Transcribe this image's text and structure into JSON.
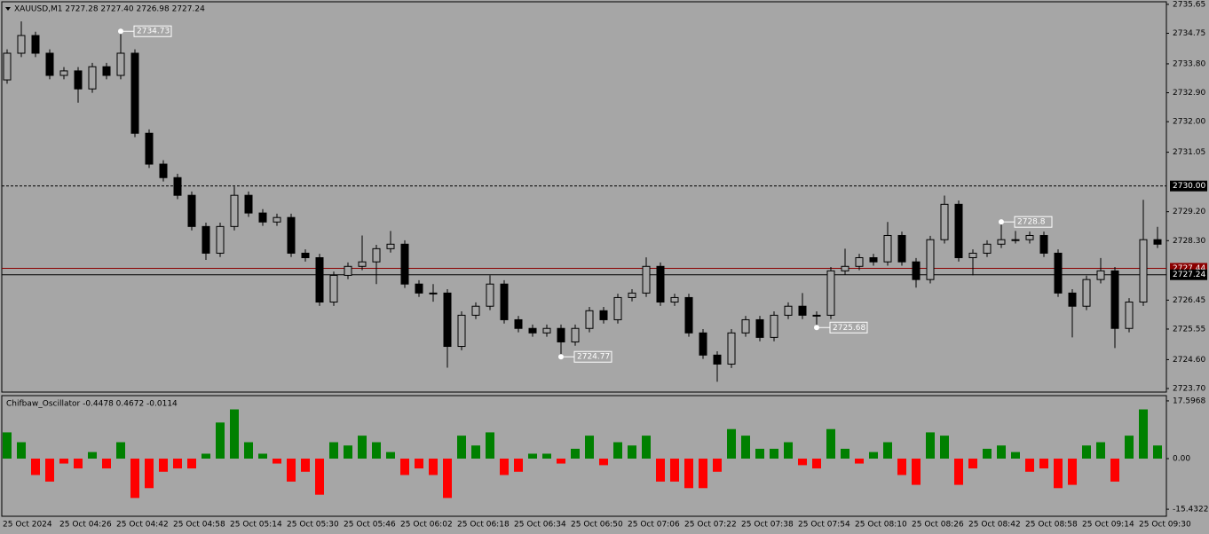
{
  "chart_data": [
    {
      "type": "candlestick",
      "title": "XAUUSD,M1  2727.28 2727.40 2726.98 2727.24",
      "color": "#000000",
      "categories": [
        "25 Oct 2024",
        null,
        null,
        null,
        "25 Oct 04:26",
        null,
        null,
        null,
        "25 Oct 04:42",
        null,
        null,
        null,
        "25 Oct 04:58",
        null,
        null,
        null,
        "25 Oct 05:14",
        null,
        null,
        null,
        "25 Oct 05:30",
        null,
        null,
        null,
        "25 Oct 05:46",
        null,
        null,
        null,
        "25 Oct 06:02",
        null,
        null,
        null,
        "25 Oct 06:18",
        null,
        null,
        null,
        "25 Oct 06:34",
        null,
        null,
        null,
        "25 Oct 06:50",
        null,
        null,
        null,
        "25 Oct 07:06",
        null,
        null,
        null,
        "25 Oct 07:22",
        null,
        null,
        null,
        "25 Oct 07:38",
        null,
        null,
        null,
        "25 Oct 07:54",
        null,
        null,
        null,
        "25 Oct 08:10",
        null,
        null,
        null,
        "25 Oct 08:26",
        null,
        null,
        null,
        "25 Oct 08:42",
        null,
        null,
        null,
        "25 Oct 08:58",
        null,
        null,
        null,
        "25 Oct 09:14",
        null,
        null,
        null,
        "25 Oct 09:30",
        null
      ],
      "open": [
        2733.3,
        2734.13,
        2734.68,
        2734.13,
        2733.44,
        2733.58,
        2733.02,
        2733.71,
        2733.44,
        2734.13,
        2731.64,
        2730.68,
        2730.26,
        2729.71,
        2728.74,
        2727.91,
        2728.74,
        2729.71,
        2729.16,
        2728.88,
        2729.02,
        2727.91,
        2727.77,
        2726.39,
        2727.22,
        2727.5,
        2727.64,
        2728.05,
        2728.19,
        2726.95,
        2726.67,
        2726.67,
        2725.01,
        2725.98,
        2726.26,
        2726.95,
        2725.84,
        2725.57,
        2725.43,
        2725.57,
        2725.15,
        2725.57,
        2726.12,
        2725.84,
        2726.53,
        2726.67,
        2727.5,
        2726.39,
        2726.53,
        2725.43,
        2724.74,
        2724.46,
        2725.43,
        2725.84,
        2725.29,
        2725.98,
        2726.26,
        2725.98,
        2725.98,
        2727.36,
        2727.5,
        2727.77,
        2727.64,
        2728.46,
        2727.64,
        2727.09,
        2728.33,
        2729.43,
        2727.77,
        2727.91,
        2728.19,
        2728.33,
        2728.33,
        2728.46,
        2727.91,
        2726.67,
        2726.26,
        2727.09,
        2727.36,
        2725.57,
        2726.39,
        2728.33
      ],
      "high": [
        2734.25,
        2735.12,
        2734.8,
        2734.25,
        2733.7,
        2733.7,
        2733.83,
        2733.83,
        2734.73,
        2734.25,
        2731.76,
        2730.8,
        2730.38,
        2729.83,
        2728.86,
        2728.86,
        2729.98,
        2729.83,
        2729.28,
        2729.14,
        2729.14,
        2728.03,
        2727.89,
        2727.34,
        2727.62,
        2728.46,
        2728.17,
        2728.6,
        2728.31,
        2727.07,
        2726.95,
        2726.79,
        2726.1,
        2726.38,
        2727.22,
        2727.07,
        2725.96,
        2725.69,
        2725.69,
        2725.69,
        2725.69,
        2726.24,
        2726.24,
        2726.65,
        2726.79,
        2727.78,
        2727.62,
        2726.65,
        2726.65,
        2725.55,
        2724.86,
        2725.55,
        2725.96,
        2725.96,
        2726.1,
        2726.38,
        2726.67,
        2726.1,
        2727.48,
        2728.05,
        2727.89,
        2727.89,
        2728.88,
        2728.58,
        2727.76,
        2728.45,
        2729.7,
        2729.55,
        2728.03,
        2728.31,
        2728.8,
        2728.6,
        2728.58,
        2728.58,
        2728.03,
        2726.79,
        2727.21,
        2727.76,
        2727.48,
        2726.51,
        2729.57,
        2728.73
      ],
      "low": [
        2733.18,
        2734.01,
        2734.01,
        2733.32,
        2733.32,
        2732.59,
        2732.9,
        2733.32,
        2733.32,
        2731.52,
        2730.56,
        2730.14,
        2729.59,
        2728.62,
        2727.7,
        2727.79,
        2728.62,
        2729.04,
        2728.76,
        2728.76,
        2727.79,
        2727.65,
        2726.27,
        2726.27,
        2727.1,
        2727.38,
        2726.95,
        2727.93,
        2726.83,
        2726.55,
        2726.4,
        2724.35,
        2724.89,
        2725.86,
        2726.14,
        2725.72,
        2725.45,
        2725.31,
        2725.31,
        2724.77,
        2725.03,
        2725.45,
        2725.72,
        2725.72,
        2726.41,
        2726.55,
        2726.27,
        2726.27,
        2725.31,
        2724.62,
        2723.91,
        2724.34,
        2725.31,
        2725.17,
        2725.17,
        2725.86,
        2725.86,
        2725.68,
        2725.86,
        2727.24,
        2727.38,
        2727.52,
        2727.52,
        2727.52,
        2726.84,
        2726.97,
        2728.21,
        2727.65,
        2727.22,
        2727.79,
        2728.07,
        2728.21,
        2728.21,
        2727.79,
        2726.55,
        2725.29,
        2726.14,
        2726.97,
        2724.96,
        2725.45,
        2726.27,
        2728.07
      ],
      "close": [
        2734.13,
        2734.68,
        2734.13,
        2733.44,
        2733.58,
        2733.02,
        2733.71,
        2733.44,
        2734.13,
        2731.64,
        2730.68,
        2730.26,
        2729.71,
        2728.74,
        2727.91,
        2728.74,
        2729.71,
        2729.16,
        2728.88,
        2729.02,
        2727.91,
        2727.77,
        2726.39,
        2727.22,
        2727.5,
        2727.64,
        2728.05,
        2728.19,
        2726.95,
        2726.67,
        2726.67,
        2725.01,
        2725.98,
        2726.26,
        2726.95,
        2725.84,
        2725.57,
        2725.43,
        2725.57,
        2725.15,
        2725.57,
        2726.12,
        2725.84,
        2726.53,
        2726.67,
        2727.5,
        2726.39,
        2726.53,
        2725.43,
        2724.74,
        2724.46,
        2725.43,
        2725.84,
        2725.29,
        2725.98,
        2726.26,
        2725.98,
        2725.98,
        2727.36,
        2727.5,
        2727.77,
        2727.64,
        2728.46,
        2727.64,
        2727.09,
        2728.33,
        2729.43,
        2727.77,
        2727.91,
        2728.19,
        2728.33,
        2728.33,
        2728.46,
        2727.91,
        2726.67,
        2726.26,
        2727.09,
        2727.36,
        2725.57,
        2726.39,
        2728.33,
        2728.19
      ],
      "ylim": [
        2723.59,
        2735.73
      ],
      "yticks": [
        2735.65,
        2734.75,
        {
          "value": 2733.8,
          "label": "2733.80"
        },
        {
          "value": 2732.9,
          "label": "2732.90"
        },
        {
          "value": 2732.0,
          "label": "2732.00"
        },
        2731.05,
        {
          "value": 2729.2,
          "label": "2729.20"
        },
        {
          "value": 2728.3,
          "label": "2728.30"
        },
        2726.45,
        2725.55,
        {
          "value": 2724.6,
          "label": "2724.60"
        },
        {
          "value": 2723.7,
          "label": "2723.70"
        }
      ],
      "price_lines": [
        {
          "value": 2730.0,
          "label": "2730.00",
          "color": "#000000",
          "dashed": true
        },
        {
          "value": 2727.44,
          "label": "2727.44",
          "color": "#8b0000",
          "dashed": false
        },
        {
          "value": 2727.24,
          "label": "2727.24",
          "color": "#000000",
          "dashed": false
        }
      ],
      "annotations": [
        2734.73,
        2724.77,
        2725.68,
        2728.8
      ]
    },
    {
      "type": "bar",
      "title": "Chifbaw_Oscillator -0.4478 0.4672 -0.0114",
      "positive_color": "#008000",
      "negative_color": "#ff0000",
      "values": [
        8,
        5,
        -5,
        -7,
        -1.5,
        -3,
        2,
        -3,
        5,
        -12,
        -9,
        -4,
        -3,
        -3,
        1.5,
        11,
        15,
        5,
        1.5,
        -1.5,
        -7,
        -4,
        -11,
        5,
        4,
        7,
        5,
        2,
        -5,
        -3,
        -5,
        -12,
        7,
        4,
        8,
        -5,
        -4,
        1.5,
        1.5,
        -1.5,
        3,
        7,
        -2,
        5,
        4,
        7,
        -7,
        -7,
        -9,
        -9,
        -4,
        9,
        7,
        3,
        3,
        5,
        -2,
        -3,
        9,
        3,
        -1.5,
        2,
        5,
        -5,
        -8,
        8,
        7,
        -8,
        -3,
        3,
        4,
        2,
        -4,
        -3,
        -9,
        -8,
        4,
        5,
        -7,
        7,
        15,
        4
      ],
      "ylim": [
        -17.57,
        19.2
      ],
      "yticks": [
        17.5968,
        {
          "value": 0,
          "label": "0.00"
        },
        -15.4322
      ]
    }
  ]
}
